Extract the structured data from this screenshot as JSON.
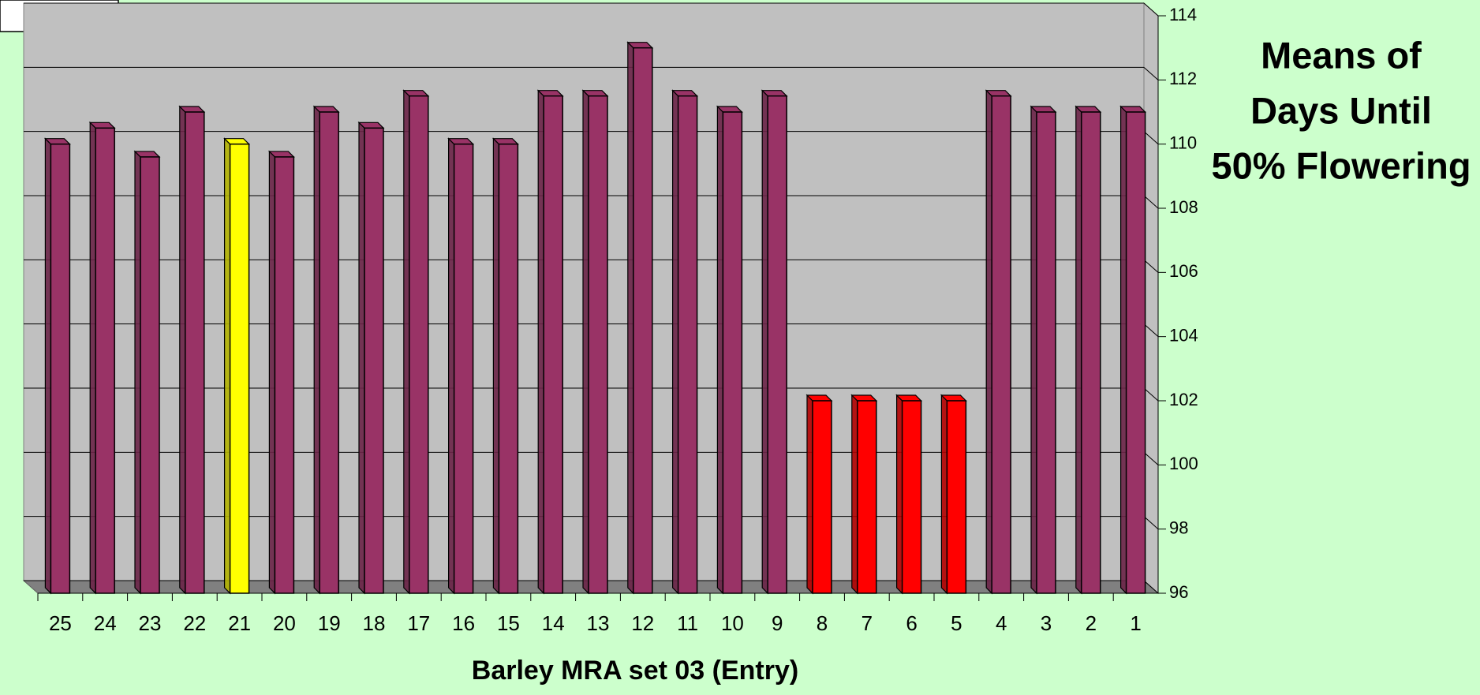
{
  "chart_data": {
    "type": "bar",
    "title": [
      "Means of",
      "Days Until",
      "50% Flowering"
    ],
    "x_label": "Barley MRA set 03 (Entry)",
    "categories": [
      "25",
      "24",
      "23",
      "22",
      "21",
      "20",
      "19",
      "18",
      "17",
      "16",
      "15",
      "14",
      "13",
      "12",
      "11",
      "10",
      "9",
      "8",
      "7",
      "6",
      "5",
      "4",
      "3",
      "2",
      "1"
    ],
    "values": [
      110,
      110.5,
      109.6,
      111,
      110,
      109.6,
      111,
      110.5,
      111.5,
      110,
      110,
      111.5,
      111.5,
      113,
      111.5,
      111,
      111.5,
      102,
      102,
      102,
      102,
      111.5,
      111,
      111,
      111
    ],
    "colors": [
      "#993366",
      "#993366",
      "#993366",
      "#993366",
      "#ffff00",
      "#993366",
      "#993366",
      "#993366",
      "#993366",
      "#993366",
      "#993366",
      "#993366",
      "#993366",
      "#993366",
      "#993366",
      "#993366",
      "#993366",
      "#ff0000",
      "#ff0000",
      "#ff0000",
      "#ff0000",
      "#993366",
      "#993366",
      "#993366",
      "#993366"
    ],
    "ylim": [
      96,
      114
    ],
    "yticks": [
      96,
      98,
      100,
      102,
      104,
      106,
      108,
      110,
      112,
      114
    ],
    "y_axis_side": "right",
    "grid": true
  }
}
